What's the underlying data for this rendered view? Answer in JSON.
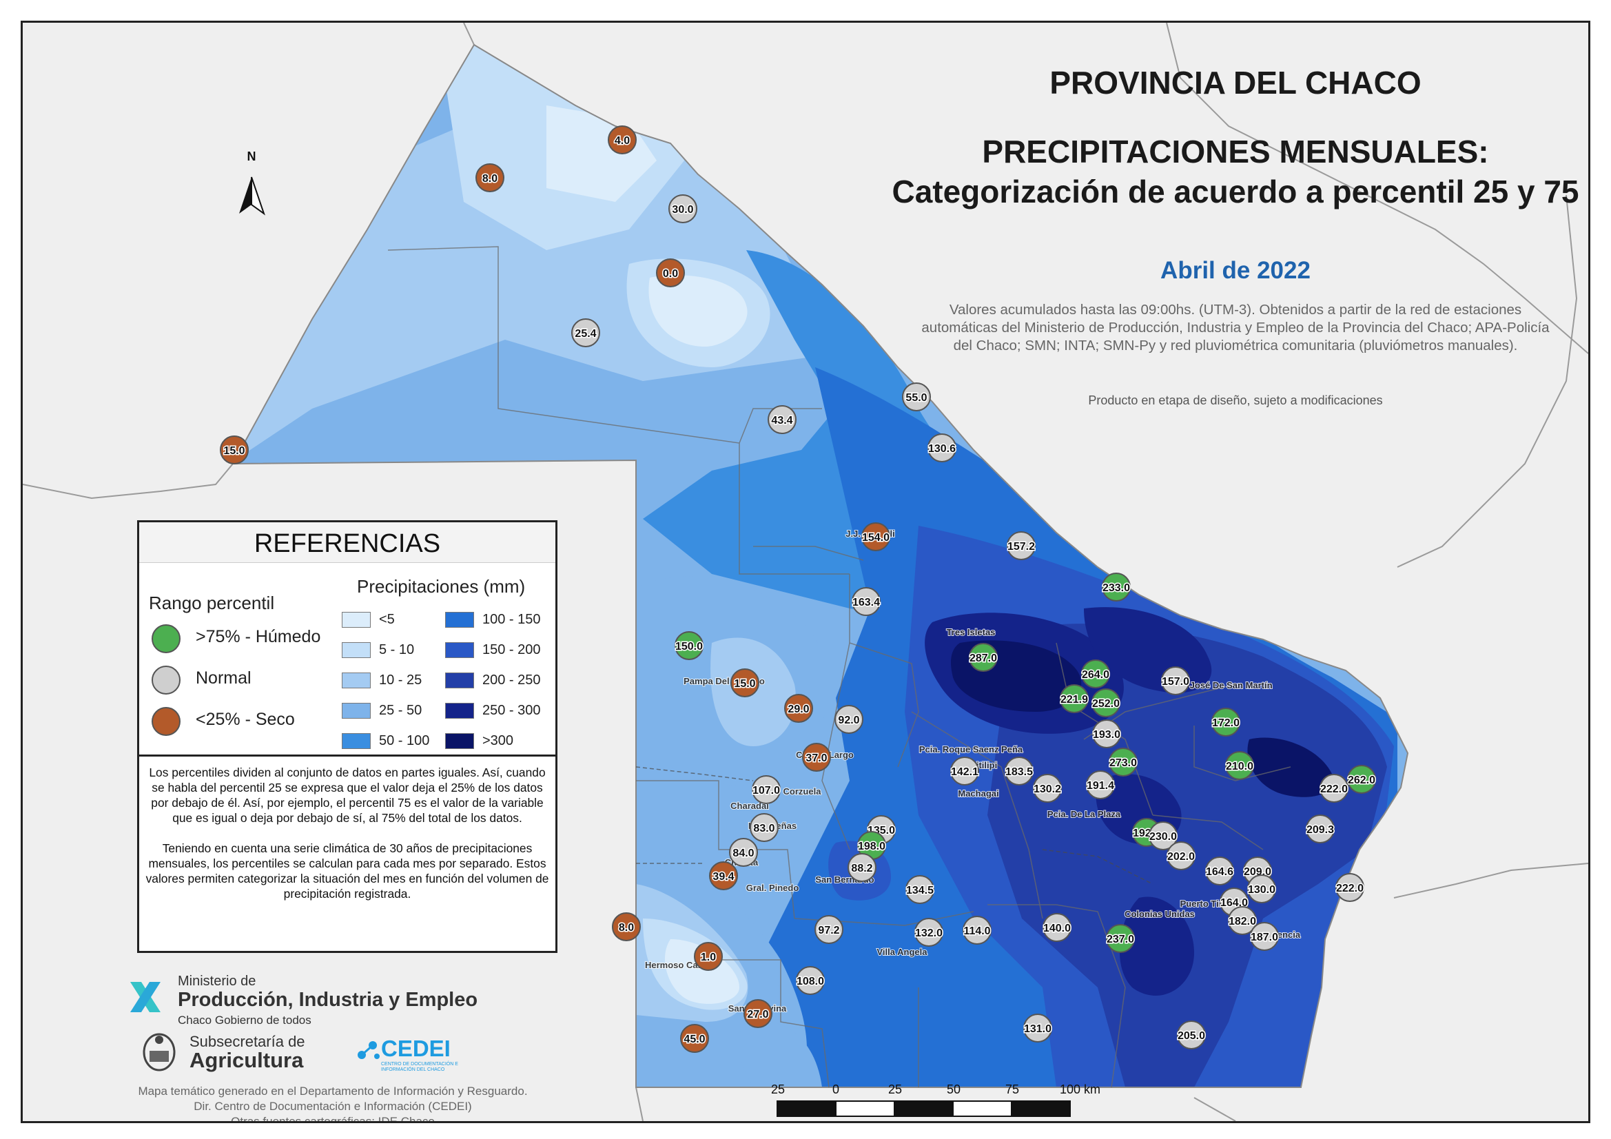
{
  "title": {
    "line1": "PROVINCIA DEL CHACO",
    "line2": "PRECIPITACIONES MENSUALES: Categorización de acuerdo a percentil 25 y 75",
    "month": "Abril de 2022"
  },
  "description": "Valores acumulados hasta las 09:00hs. (UTM-3). Obtenidos a partir de la red de estaciones automáticas del Ministerio de Producción, Industria y Empleo de la Provincia del Chaco; APA-Policía del Chaco; SMN; INTA; SMN-Py y red pluviométrica comunitaria (pluviómetros manuales).",
  "design_note": "Producto en etapa de diseño, sujeto a modificaciones",
  "legend": {
    "title": "REFERENCIAS",
    "rank_title": "Rango percentil",
    "rank": [
      {
        "label": ">75% - Húmedo",
        "color": "#4caf50"
      },
      {
        "label": "Normal",
        "color": "#cfcfcf"
      },
      {
        "label": "<25% - Seco",
        "color": "#b35a2a"
      }
    ],
    "precip_title": "Precipitaciones (mm)",
    "classes": [
      {
        "label": "<5",
        "color": "#dcedfb"
      },
      {
        "label": "5 - 10",
        "color": "#c3dff8"
      },
      {
        "label": "10 - 25",
        "color": "#a4cbf2"
      },
      {
        "label": "25 - 50",
        "color": "#7eb3ea"
      },
      {
        "label": "50 - 100",
        "color": "#3a8ee0"
      },
      {
        "label": "100 - 150",
        "color": "#2470d4"
      },
      {
        "label": "150 - 200",
        "color": "#2a58c6"
      },
      {
        "label": "200 - 250",
        "color": "#233fa8"
      },
      {
        "label": "250 - 300",
        "color": "#14238a"
      },
      {
        "label": ">300",
        "color": "#0a1467"
      }
    ]
  },
  "info_text": {
    "p1": "Los percentiles dividen al conjunto de datos en partes iguales. Así, cuando se habla del percentil 25 se expresa que el valor deja el 25% de los datos por debajo de él. Así, por ejemplo, el percentil 75 es el valor de la variable que es igual o deja por debajo de sí, al 75% del total de los datos.",
    "p2": "Teniendo en cuenta una serie climática de 30 años de precipitaciones mensuales, los percentiles se calculan para cada mes por separado. Estos valores permiten categorizar la situación del mes en función del volumen de precipitación registrada."
  },
  "logos": {
    "ministerio_small": "Ministerio de",
    "ministerio_big": "Producción, Industria y Empleo",
    "ministerio_sub": "Chaco Gobierno de todos",
    "subsec_small": "Subsecretaría de",
    "subsec_big": "Agricultura",
    "cedei": "CEDEI",
    "cedei_sub": "CENTRO DE DOCUMENTACIÓN E INFORMACIÓN DEL CHACO"
  },
  "footer": {
    "line1": "Mapa temático generado en el Departamento de Información y Resguardo.",
    "line2": "Dir. Centro de Documentación e Información (CEDEI)",
    "line3": "Otras fuentes cartográficas: IDE Chaco"
  },
  "north_label": "N",
  "scale": {
    "labels": [
      "25",
      "0",
      "25",
      "50",
      "75",
      "100 km"
    ]
  },
  "stations": [
    {
      "value": "4.0",
      "category": "dry"
    },
    {
      "value": "8.0",
      "category": "dry"
    },
    {
      "value": "30.0",
      "category": "normal"
    },
    {
      "value": "0.0",
      "category": "dry"
    },
    {
      "value": "25.4",
      "category": "normal"
    },
    {
      "value": "55.0",
      "category": "normal"
    },
    {
      "value": "43.4",
      "category": "normal"
    },
    {
      "value": "130.6",
      "category": "normal"
    },
    {
      "value": "15.0",
      "category": "dry"
    },
    {
      "value": "154.0",
      "category": "dry"
    },
    {
      "value": "157.2",
      "category": "normal"
    },
    {
      "value": "233.0",
      "category": "wet"
    },
    {
      "value": "163.4",
      "category": "normal"
    },
    {
      "value": "287.0",
      "category": "wet"
    },
    {
      "value": "150.0",
      "category": "wet"
    },
    {
      "value": "15.0",
      "category": "dry"
    },
    {
      "value": "29.0",
      "category": "dry"
    },
    {
      "value": "264.0",
      "category": "wet"
    },
    {
      "value": "221.9",
      "category": "wet"
    },
    {
      "value": "252.0",
      "category": "wet"
    },
    {
      "value": "157.0",
      "category": "normal"
    },
    {
      "value": "92.0",
      "category": "normal"
    },
    {
      "value": "193.0",
      "category": "normal"
    },
    {
      "value": "172.0",
      "category": "wet"
    },
    {
      "value": "37.0",
      "category": "dry"
    },
    {
      "value": "273.0",
      "category": "wet"
    },
    {
      "value": "210.0",
      "category": "wet"
    },
    {
      "value": "142.1",
      "category": "normal"
    },
    {
      "value": "183.5",
      "category": "normal"
    },
    {
      "value": "262.0",
      "category": "wet"
    },
    {
      "value": "107.0",
      "category": "normal"
    },
    {
      "value": "130.2",
      "category": "normal"
    },
    {
      "value": "191.4",
      "category": "normal"
    },
    {
      "value": "222.0",
      "category": "normal"
    },
    {
      "value": "83.0",
      "category": "normal"
    },
    {
      "value": "135.0",
      "category": "normal"
    },
    {
      "value": "209.3",
      "category": "normal"
    },
    {
      "value": "192.0",
      "category": "wet"
    },
    {
      "value": "230.0",
      "category": "normal"
    },
    {
      "value": "198.0",
      "category": "wet"
    },
    {
      "value": "84.0",
      "category": "normal"
    },
    {
      "value": "202.0",
      "category": "normal"
    },
    {
      "value": "88.2",
      "category": "normal"
    },
    {
      "value": "39.4",
      "category": "dry"
    },
    {
      "value": "164.6",
      "category": "normal"
    },
    {
      "value": "209.0",
      "category": "normal"
    },
    {
      "value": "134.5",
      "category": "normal"
    },
    {
      "value": "130.0",
      "category": "normal"
    },
    {
      "value": "222.0",
      "category": "normal"
    },
    {
      "value": "164.0",
      "category": "normal"
    },
    {
      "value": "182.0",
      "category": "normal"
    },
    {
      "value": "8.0",
      "category": "dry"
    },
    {
      "value": "97.2",
      "category": "normal"
    },
    {
      "value": "132.0",
      "category": "normal"
    },
    {
      "value": "114.0",
      "category": "normal"
    },
    {
      "value": "140.0",
      "category": "normal"
    },
    {
      "value": "237.0",
      "category": "wet"
    },
    {
      "value": "187.0",
      "category": "normal"
    },
    {
      "value": "1.0",
      "category": "dry"
    },
    {
      "value": "108.0",
      "category": "normal"
    },
    {
      "value": "27.0",
      "category": "dry"
    },
    {
      "value": "131.0",
      "category": "normal"
    },
    {
      "value": "205.0",
      "category": "normal"
    },
    {
      "value": "45.0",
      "category": "dry"
    }
  ],
  "place_labels": [
    "J.J. Castelli",
    "Tres Isletas",
    "Pampa Del Infierno",
    "Gral. José De San Martín",
    "Campo Largo",
    "Pcia. Roque Saenz Peña",
    "Quitilipi",
    "Machagai",
    "Corzuela",
    "Pcia. De La Plaza",
    "Charadai",
    "Las Breñas",
    "Charata",
    "San Bernardo",
    "Gral. Pinedo",
    "Puerto Tirol",
    "Resistencia",
    "Villa Angela",
    "Hermoso Campo",
    "Santa Sylvina",
    "Colonias Unidas"
  ]
}
